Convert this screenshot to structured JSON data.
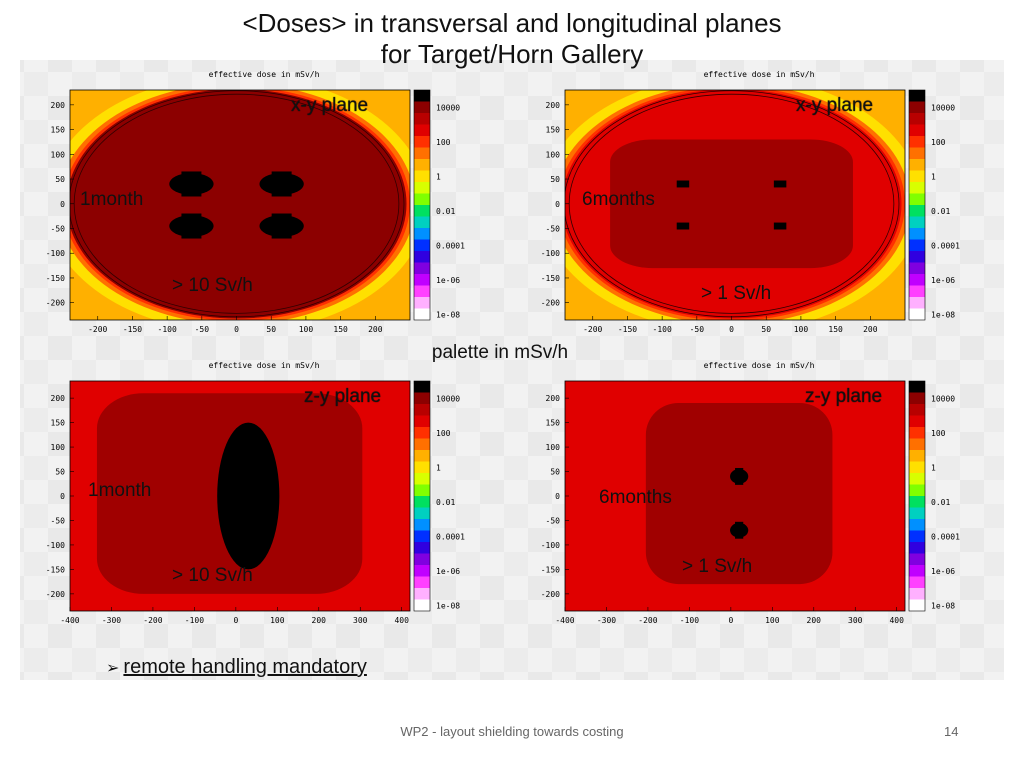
{
  "slide": {
    "title_line1": "<Doses> in transversal and longitudinal planes",
    "title_line2": "for Target/Horn Gallery",
    "palette_label": "palette in mSv/h",
    "bullet_text": "remote handling mandatory",
    "footer": "WP2 - layout shielding towards  costing",
    "page_number": "14"
  },
  "palette": {
    "labels": [
      "10000",
      "100",
      "1",
      "0.01",
      "0.0001",
      "1e-06",
      "1e-08"
    ],
    "colors": [
      "#000000",
      "#8c0000",
      "#b80000",
      "#e00000",
      "#ff3000",
      "#ff7000",
      "#ffb000",
      "#ffe000",
      "#d8ff00",
      "#80ff00",
      "#00e060",
      "#00d0c0",
      "#0090ff",
      "#0030ff",
      "#3000e0",
      "#8000e0",
      "#c000ff",
      "#ff40ff",
      "#ffb0ff",
      "#ffffff"
    ]
  },
  "chart_data": [
    {
      "type": "heatmap",
      "title": "effective dose in mSv/h",
      "plane_label": "x-y plane",
      "time_label": "1month",
      "dose_label": "> 10 Sv/h",
      "x_ticks": [
        "-200",
        "-150",
        "-100",
        "-50",
        "0",
        "50",
        "100",
        "150",
        "200"
      ],
      "y_ticks": [
        "200",
        "150",
        "100",
        "50",
        "0",
        "-50",
        "-100",
        "-150",
        "-200"
      ],
      "xlim": [
        -240,
        250
      ],
      "ylim": [
        -235,
        230
      ],
      "colorbar": "shared palette",
      "regions": [
        {
          "shape": "ellipse",
          "cx": 0,
          "cy": 0,
          "rx": 245,
          "ry": 232,
          "level": "10000-100000",
          "color": "#8c0000"
        },
        {
          "shape": "blob",
          "cx": -65,
          "cy": 40,
          "rx": 32,
          "ry": 22,
          "level": ">10000",
          "color": "#000000"
        },
        {
          "shape": "blob",
          "cx": 65,
          "cy": 40,
          "rx": 32,
          "ry": 22,
          "level": ">10000",
          "color": "#000000"
        },
        {
          "shape": "blob",
          "cx": -65,
          "cy": -45,
          "rx": 32,
          "ry": 22,
          "level": ">10000",
          "color": "#000000"
        },
        {
          "shape": "blob",
          "cx": 65,
          "cy": -45,
          "rx": 32,
          "ry": 22,
          "level": ">10000",
          "color": "#000000"
        }
      ]
    },
    {
      "type": "heatmap",
      "title": "effective dose in mSv/h",
      "plane_label": "x-y plane",
      "time_label": "6months",
      "dose_label": "> 1 Sv/h",
      "x_ticks": [
        "-200",
        "-150",
        "-100",
        "-50",
        "0",
        "50",
        "100",
        "150",
        "200"
      ],
      "y_ticks": [
        "200",
        "150",
        "100",
        "50",
        "0",
        "-50",
        "-100",
        "-150",
        "-200"
      ],
      "xlim": [
        -240,
        250
      ],
      "ylim": [
        -235,
        230
      ],
      "colorbar": "shared palette",
      "regions": [
        {
          "shape": "ellipse",
          "cx": 0,
          "cy": 0,
          "rx": 245,
          "ry": 232,
          "level": "1000-10000",
          "color": "#e00000"
        },
        {
          "shape": "roundrect",
          "cx": 0,
          "cy": 0,
          "rx": 175,
          "ry": 130,
          "level": "10000-100000",
          "color": "#a00000"
        },
        {
          "shape": "square",
          "cx": -70,
          "cy": 40,
          "rx": 9,
          "ry": 7,
          "level": ">10000",
          "color": "#000000"
        },
        {
          "shape": "square",
          "cx": 70,
          "cy": 40,
          "rx": 9,
          "ry": 7,
          "level": ">10000",
          "color": "#000000"
        },
        {
          "shape": "square",
          "cx": -70,
          "cy": -45,
          "rx": 9,
          "ry": 7,
          "level": ">10000",
          "color": "#000000"
        },
        {
          "shape": "square",
          "cx": 70,
          "cy": -45,
          "rx": 9,
          "ry": 7,
          "level": ">10000",
          "color": "#000000"
        }
      ]
    },
    {
      "type": "heatmap",
      "title": "effective dose in mSv/h",
      "plane_label": "z-y plane",
      "time_label": "1month",
      "dose_label": "> 10 Sv/h",
      "x_ticks": [
        "-400",
        "-300",
        "-200",
        "-100",
        "0",
        "100",
        "200",
        "300",
        "400"
      ],
      "y_ticks": [
        "200",
        "150",
        "100",
        "50",
        "0",
        "-50",
        "-100",
        "-150",
        "-200"
      ],
      "xlim": [
        -400,
        420
      ],
      "ylim": [
        -235,
        235
      ],
      "colorbar": "shared palette",
      "regions": [
        {
          "shape": "rect",
          "cx": 10,
          "cy": 0,
          "rx": 410,
          "ry": 235,
          "level": "1000-10000",
          "color": "#e00000"
        },
        {
          "shape": "roundrect",
          "cx": -15,
          "cy": 5,
          "rx": 320,
          "ry": 205,
          "level": "10000-100000",
          "color": "#a00000"
        },
        {
          "shape": "ellipse",
          "cx": 30,
          "cy": 0,
          "rx": 75,
          "ry": 150,
          "level": ">10000",
          "color": "#000000"
        }
      ]
    },
    {
      "type": "heatmap",
      "title": "effective dose in mSv/h",
      "plane_label": "z-y plane",
      "time_label": "6months",
      "dose_label": "> 1 Sv/h",
      "x_ticks": [
        "-400",
        "-300",
        "-200",
        "-100",
        "0",
        "100",
        "200",
        "300",
        "400"
      ],
      "y_ticks": [
        "200",
        "150",
        "100",
        "50",
        "0",
        "-50",
        "-100",
        "-150",
        "-200"
      ],
      "xlim": [
        -400,
        420
      ],
      "ylim": [
        -235,
        235
      ],
      "colorbar": "shared palette",
      "regions": [
        {
          "shape": "rect",
          "cx": 10,
          "cy": 0,
          "rx": 410,
          "ry": 235,
          "level": "1000-10000",
          "color": "#e00000"
        },
        {
          "shape": "roundrect",
          "cx": 20,
          "cy": 5,
          "rx": 225,
          "ry": 185,
          "level": "10000-100000",
          "color": "#a00000"
        },
        {
          "shape": "blob",
          "cx": 20,
          "cy": 40,
          "rx": 22,
          "ry": 15,
          "level": ">10000",
          "color": "#000000"
        },
        {
          "shape": "blob",
          "cx": 20,
          "cy": -70,
          "rx": 22,
          "ry": 15,
          "level": ">10000",
          "color": "#000000"
        }
      ]
    }
  ]
}
